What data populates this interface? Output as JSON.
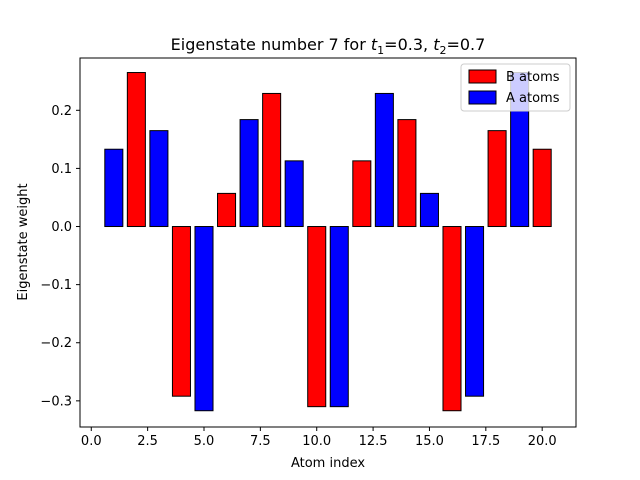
{
  "chart_data": {
    "type": "bar",
    "title_main": "Eigenstate number 7 for ",
    "title_t1": "t",
    "title_t1_sub": "1",
    "title_t1_val": "=0.3, ",
    "title_t2": "t",
    "title_t2_sub": "2",
    "title_t2_val": "=0.7",
    "xlabel": "Atom index",
    "ylabel": "Eigenstate weight",
    "xlim": [
      -0.5,
      21.5
    ],
    "ylim": [
      -0.345,
      0.29
    ],
    "xticks": [
      0.0,
      2.5,
      5.0,
      7.5,
      10.0,
      12.5,
      15.0,
      17.5,
      20.0
    ],
    "xtick_labels": [
      "0.0",
      "2.5",
      "5.0",
      "7.5",
      "10.0",
      "12.5",
      "15.0",
      "17.5",
      "20.0"
    ],
    "yticks": [
      -0.3,
      -0.2,
      -0.1,
      0.0,
      0.1,
      0.2
    ],
    "ytick_labels": [
      "−0.3",
      "−0.2",
      "−0.1",
      "0.0",
      "0.1",
      "0.2"
    ],
    "bar_width": 0.8,
    "legend_position": "upper-right",
    "series": [
      {
        "name": "B atoms",
        "color": "#ff0000",
        "x": [
          2,
          4,
          6,
          8,
          10,
          12,
          14,
          16,
          18,
          20
        ],
        "values": [
          0.265,
          -0.292,
          0.057,
          0.229,
          -0.31,
          0.113,
          0.184,
          -0.317,
          0.165,
          0.133
        ]
      },
      {
        "name": "A atoms",
        "color": "#0000ff",
        "x": [
          1,
          3,
          5,
          7,
          9,
          11,
          13,
          15,
          17,
          19
        ],
        "values": [
          0.133,
          0.165,
          -0.317,
          0.184,
          0.113,
          -0.31,
          0.229,
          0.057,
          -0.292,
          0.265
        ]
      }
    ]
  }
}
